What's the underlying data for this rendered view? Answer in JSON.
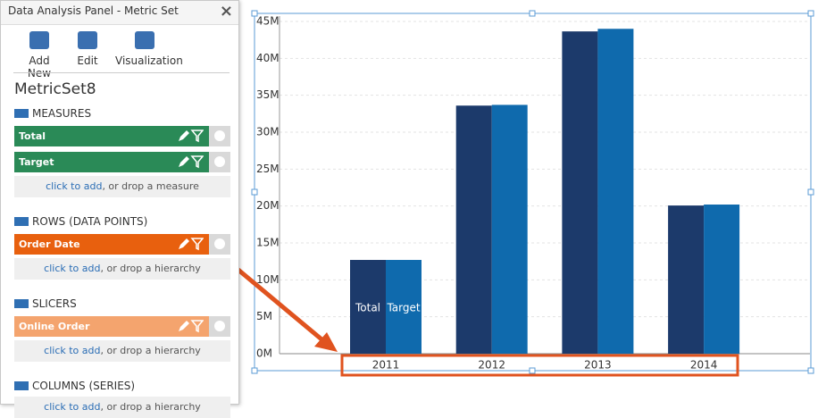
{
  "panel": {
    "title": "Data Analysis Panel - Metric Set",
    "close": "×",
    "toolbar": [
      "Add New",
      "Edit",
      "Visualization"
    ],
    "metric_set": "MetricSet8",
    "sections": [
      {
        "title": "MEASURES",
        "items": [
          {
            "label": "Total",
            "color": "#2a8a57"
          },
          {
            "label": "Target",
            "color": "#2a8a57"
          }
        ],
        "placeholder": {
          "link": "click to add",
          "text": ", or drop a measure"
        }
      },
      {
        "title": "ROWS (DATA POINTS)",
        "items": [
          {
            "label": "Order Date",
            "color": "#e8600e"
          }
        ],
        "placeholder": {
          "link": "click to add",
          "text": ", or drop a hierarchy"
        }
      },
      {
        "title": "SLICERS",
        "items": [
          {
            "label": "Online Order",
            "color": "#f4a46e"
          }
        ],
        "placeholder": {
          "link": "click to add",
          "text": ", or drop a hierarchy"
        }
      },
      {
        "title": "COLUMNS (SERIES)",
        "items": [],
        "placeholder": {
          "link": "click to add",
          "text": ", or drop a hierarchy"
        }
      }
    ]
  },
  "chart_data": {
    "type": "bar",
    "categories": [
      "2011",
      "2012",
      "2013",
      "2014"
    ],
    "series": [
      {
        "name": "Total",
        "color": "#1c3a6b",
        "values": [
          12700000,
          33600000,
          43650000,
          20070000
        ]
      },
      {
        "name": "Target",
        "color": "#0f6aad",
        "values": [
          12700000,
          33700000,
          44000000,
          20200000
        ]
      }
    ],
    "ylim": [
      0,
      45000000
    ],
    "yticks": [
      {
        "value": 0,
        "label": "0M"
      },
      {
        "value": 5000000,
        "label": "5M"
      },
      {
        "value": 10000000,
        "label": "10M"
      },
      {
        "value": 15000000,
        "label": "15M"
      },
      {
        "value": 20000000,
        "label": "20M"
      },
      {
        "value": 25000000,
        "label": "25M"
      },
      {
        "value": 30000000,
        "label": "30M"
      },
      {
        "value": 35000000,
        "label": "35M"
      },
      {
        "value": 40000000,
        "label": "40M"
      },
      {
        "value": 45000000,
        "label": "45M"
      }
    ],
    "grid": true
  }
}
